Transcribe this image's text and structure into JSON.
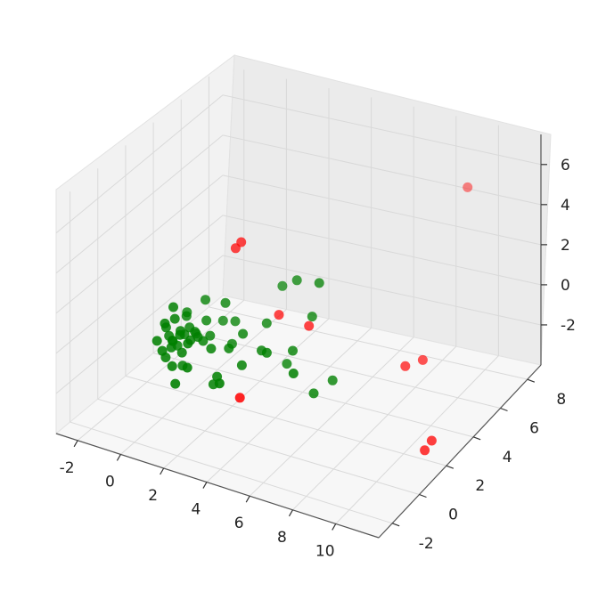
{
  "chart_data": {
    "type": "scatter",
    "projection": "3d",
    "title": "",
    "xlabel": "",
    "ylabel": "",
    "zlabel": "",
    "xlim": [
      -3,
      12
    ],
    "ylim": [
      -3,
      9
    ],
    "zlim": [
      -4,
      7.5
    ],
    "grid": true,
    "legend": "none",
    "x_ticks": [
      "-2",
      "0",
      "2",
      "4",
      "6",
      "8",
      "10"
    ],
    "y_ticks": [
      "-2",
      "0",
      "2",
      "4",
      "6",
      "8"
    ],
    "z_ticks": [
      "-2",
      "0",
      "2",
      "4",
      "6"
    ],
    "series": [
      {
        "color": "#008000",
        "points": [
          [
            0.3,
            0.2,
            -0.5
          ],
          [
            0.0,
            0.5,
            -0.2
          ],
          [
            0.5,
            0.0,
            0.0
          ],
          [
            0.2,
            0.8,
            -0.8
          ],
          [
            0.6,
            0.4,
            0.3
          ],
          [
            0.1,
            0.1,
            -1.0
          ],
          [
            0.4,
            1.0,
            -0.3
          ],
          [
            0.8,
            0.2,
            -0.6
          ],
          [
            -0.2,
            0.6,
            0.1
          ],
          [
            0.7,
            0.9,
            0.2
          ],
          [
            0.2,
            -0.3,
            -0.4
          ],
          [
            1.0,
            0.5,
            -0.1
          ],
          [
            0.3,
            1.3,
            0.4
          ],
          [
            -0.1,
            0.9,
            -0.7
          ],
          [
            0.9,
            1.2,
            -0.4
          ],
          [
            0.0,
            0.2,
            0.6
          ],
          [
            0.5,
            1.6,
            -0.5
          ],
          [
            1.2,
            0.0,
            0.1
          ],
          [
            0.6,
            -0.2,
            -1.1
          ],
          [
            0.4,
            0.3,
            0.9
          ],
          [
            1.1,
            1.5,
            0.3
          ],
          [
            -0.3,
            0.1,
            -0.3
          ],
          [
            0.2,
            0.5,
            1.3
          ],
          [
            0.9,
            -0.1,
            0.5
          ],
          [
            1.4,
            0.8,
            -0.2
          ],
          [
            0.0,
            1.8,
            0.2
          ],
          [
            0.7,
            0.4,
            -1.4
          ],
          [
            1.6,
            1.0,
            0.0
          ],
          [
            0.3,
            2.0,
            -0.9
          ],
          [
            1.9,
            0.6,
            -0.3
          ],
          [
            2.3,
            1.5,
            -0.5
          ],
          [
            2.6,
            0.8,
            -0.2
          ],
          [
            1.5,
            -0.5,
            -0.7
          ],
          [
            3.0,
            1.2,
            0.4
          ],
          [
            2.0,
            2.2,
            0.1
          ],
          [
            3.4,
            0.5,
            -0.6
          ],
          [
            1.8,
            1.8,
            1.2
          ],
          [
            4.0,
            1.0,
            0.0
          ],
          [
            2.5,
            0.1,
            -1.2
          ],
          [
            3.6,
            2.0,
            0.6
          ],
          [
            4.8,
            1.6,
            -0.8
          ],
          [
            4.5,
            0.6,
            0.3
          ],
          [
            5.2,
            1.4,
            0.1
          ],
          [
            3.0,
            -0.5,
            -1.0
          ],
          [
            5.6,
            2.2,
            1.4
          ],
          [
            6.5,
            0.9,
            -1.3
          ],
          [
            7.0,
            1.5,
            -0.9
          ],
          [
            6.0,
            0.2,
            0.0
          ],
          [
            3.5,
            3.3,
            1.6
          ],
          [
            4.5,
            2.8,
            2.5
          ],
          [
            5.8,
            2.4,
            3.0
          ],
          [
            2.2,
            0.3,
            -1.8
          ],
          [
            1.0,
            -0.6,
            -1.6
          ],
          [
            0.8,
            1.9,
            1.0
          ],
          [
            1.3,
            2.4,
            -0.2
          ]
        ]
      },
      {
        "color": "#ff0000",
        "points": [
          [
            1.5,
            3.0,
            3.1
          ],
          [
            1.7,
            3.1,
            3.4
          ],
          [
            3.4,
            3.2,
            0.2
          ],
          [
            5.0,
            2.9,
            0.3
          ],
          [
            3.5,
            0.2,
            -2.0
          ],
          [
            9.0,
            3.7,
            -1.1
          ],
          [
            9.5,
            4.2,
            -1.0
          ],
          [
            8.8,
            8.6,
            4.4
          ],
          [
            11.0,
            2.5,
            -3.4
          ],
          [
            10.8,
            2.3,
            -3.8
          ]
        ]
      }
    ]
  }
}
